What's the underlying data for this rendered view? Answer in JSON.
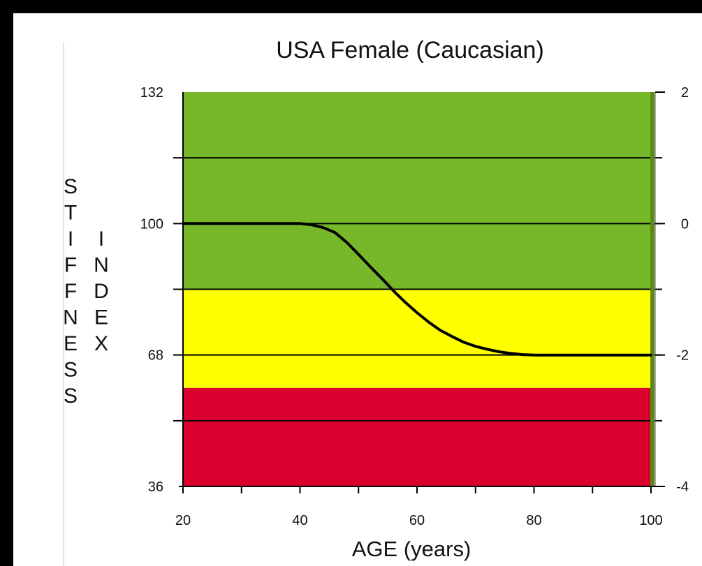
{
  "chart_data": {
    "type": "line",
    "title": "USA Female (Caucasian)",
    "xlabel": "AGE (years)",
    "ylabel": "STIFFNESS INDEX",
    "ylabel_words": [
      "STIFFNESS",
      "INDEX"
    ],
    "xlim": [
      20,
      100
    ],
    "ylim": [
      36,
      132
    ],
    "y2lim": [
      -4,
      2
    ],
    "x_ticks": [
      20,
      40,
      60,
      80,
      100
    ],
    "y_ticks": [
      36,
      68,
      100,
      132
    ],
    "y2_ticks": [
      -4,
      -2,
      0,
      2
    ],
    "y_tick_labels": [
      "36",
      "68",
      "100",
      "132"
    ],
    "x_tick_labels": [
      "20",
      "40",
      "60",
      "80",
      "100"
    ],
    "y2_tick_labels": [
      "-4",
      "-2",
      "0",
      "2"
    ],
    "gridlines_y": [
      52,
      68,
      84,
      100,
      116
    ],
    "zones": [
      {
        "from": 36,
        "to": 60,
        "color": "#d9002e"
      },
      {
        "from": 60,
        "to": 84,
        "color": "#ffff00"
      },
      {
        "from": 84,
        "to": 132,
        "color": "#77b82a"
      }
    ],
    "series": [
      {
        "x": [
          20,
          30,
          40,
          42,
          44,
          46,
          48,
          50,
          52,
          54,
          56,
          58,
          60,
          62,
          64,
          66,
          68,
          70,
          72,
          74,
          76,
          78,
          80,
          90,
          100
        ],
        "y": [
          100,
          100,
          100,
          99.7,
          99,
          97.8,
          95.4,
          92.5,
          89.5,
          86.6,
          83.6,
          80.8,
          78.3,
          76,
          74,
          72.5,
          71.1,
          70.1,
          69.4,
          68.8,
          68.4,
          68.1,
          68,
          68,
          68
        ],
        "color": "#000000"
      }
    ],
    "grid": true,
    "right_axis_color": "#5a8a14"
  }
}
